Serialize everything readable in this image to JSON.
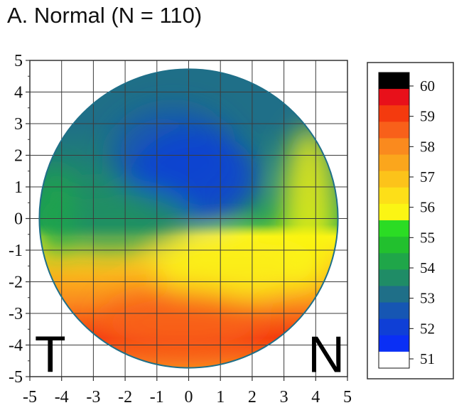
{
  "title": "A. Normal (N = 110)",
  "chart_data": {
    "type": "heatmap",
    "title": "A. Normal (N = 110)",
    "xlabel": "",
    "ylabel": "",
    "xlim": [
      -5,
      5
    ],
    "ylim": [
      -5,
      5
    ],
    "x_ticks": [
      "-5",
      "-4",
      "-3",
      "-2",
      "-1",
      "0",
      "1",
      "2",
      "3",
      "4",
      "5"
    ],
    "y_ticks": [
      "5",
      "4",
      "3",
      "2",
      "1",
      "0",
      "-1",
      "-2",
      "-3",
      "-4",
      "-5"
    ],
    "grid": true,
    "disk_radius": 4.7,
    "corner_labels": {
      "left": "T",
      "right": "N"
    },
    "colorbar": {
      "range": [
        51,
        60
      ],
      "tick_labels": [
        "60",
        "59",
        "58",
        "57",
        "56",
        "55",
        "54",
        "53",
        "52",
        "51"
      ],
      "bands": [
        {
          "value": 60,
          "color": "#000000"
        },
        {
          "value": 59.5,
          "color": "#e8101a"
        },
        {
          "value": 59,
          "color": "#f43a0e"
        },
        {
          "value": 58.5,
          "color": "#f8601a"
        },
        {
          "value": 58,
          "color": "#fa8a1e"
        },
        {
          "value": 57.5,
          "color": "#fba61c"
        },
        {
          "value": 57,
          "color": "#fcc31a"
        },
        {
          "value": 56.5,
          "color": "#fddf18"
        },
        {
          "value": 56,
          "color": "#fbf514"
        },
        {
          "value": 55.5,
          "color": "#2bdc24"
        },
        {
          "value": 55,
          "color": "#22c02e"
        },
        {
          "value": 54.5,
          "color": "#1fa649"
        },
        {
          "value": 54,
          "color": "#1f8c66"
        },
        {
          "value": 53.5,
          "color": "#1f6f88"
        },
        {
          "value": 53,
          "color": "#1656b3"
        },
        {
          "value": 52.5,
          "color": "#0f3fd6"
        },
        {
          "value": 52,
          "color": "#0a2ff5"
        },
        {
          "value": 51.5,
          "color": "#ffffff"
        }
      ]
    },
    "map_regions": [
      {
        "value": 53.0,
        "center": [
          -0.5,
          2.0
        ],
        "note": "blue-green upper zone"
      },
      {
        "value": 52.6,
        "center": [
          0.2,
          1.3
        ],
        "note": "deepest blue patch"
      },
      {
        "value": 54.2,
        "center": [
          -2.5,
          0.0
        ],
        "note": "green band above midline"
      },
      {
        "value": 55.8,
        "center": [
          1.5,
          -1.5
        ],
        "note": "yellow band below midline"
      },
      {
        "value": 58.5,
        "center": [
          -0.2,
          -3.3
        ],
        "note": "red-orange lower zone"
      }
    ]
  },
  "colors": {
    "frame": "#333333",
    "grid": "#3c3c3c",
    "disk_edge": "#1f6f88"
  }
}
